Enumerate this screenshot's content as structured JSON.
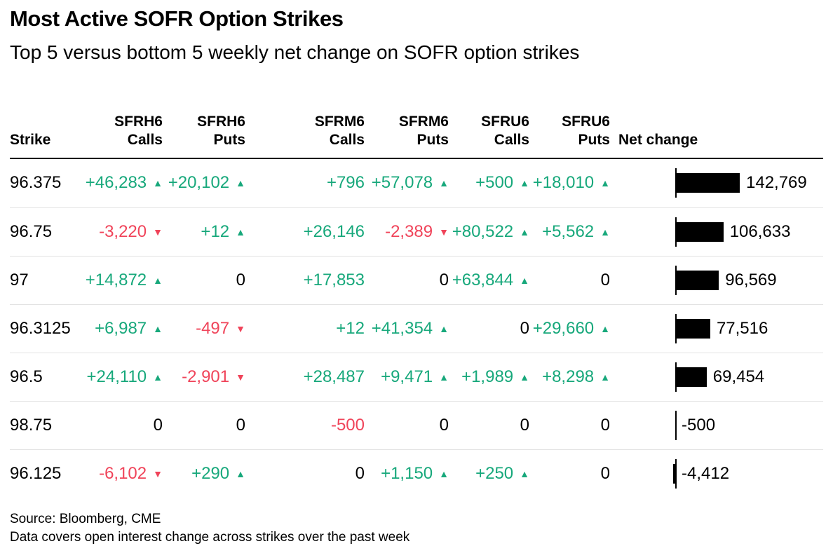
{
  "title": "Most Active SOFR Option Strikes",
  "subtitle": "Top 5 versus bottom 5 weekly net change on SOFR option strikes",
  "colors": {
    "positive": "#17A87B",
    "negative": "#F0445A",
    "bar_fill": "#000000"
  },
  "icons": {
    "up_arrow": "▲",
    "down_arrow": "▼"
  },
  "table": {
    "headers": [
      {
        "line1": "",
        "line2": "Strike"
      },
      {
        "line1": "SFRH6",
        "line2": "Calls"
      },
      {
        "line1": "SFRH6",
        "line2": "Puts"
      },
      {
        "line1": "SFRM6",
        "line2": "Calls"
      },
      {
        "line1": "SFRM6",
        "line2": "Puts"
      },
      {
        "line1": "SFRU6",
        "line2": "Calls"
      },
      {
        "line1": "SFRU6",
        "line2": "Puts"
      },
      {
        "line1": "",
        "line2": "Net change"
      }
    ],
    "rows": [
      {
        "strike": "96.375",
        "cells": [
          {
            "text": "+46,283",
            "arrow": "up",
            "tone": "positive"
          },
          {
            "text": "+20,102",
            "arrow": "up",
            "tone": "positive"
          },
          {
            "text": "+796",
            "arrow": null,
            "tone": "positive"
          },
          {
            "text": "+57,078",
            "arrow": "up",
            "tone": "positive"
          },
          {
            "text": "+500",
            "arrow": "up",
            "tone": "positive"
          },
          {
            "text": "+18,010",
            "arrow": "up",
            "tone": "positive"
          }
        ],
        "net": {
          "value": 142769,
          "label": "142,769"
        }
      },
      {
        "strike": "96.75",
        "cells": [
          {
            "text": "-3,220",
            "arrow": "down",
            "tone": "negative"
          },
          {
            "text": "+12",
            "arrow": "up",
            "tone": "positive"
          },
          {
            "text": "+26,146",
            "arrow": null,
            "tone": "positive"
          },
          {
            "text": "-2,389",
            "arrow": "down",
            "tone": "negative"
          },
          {
            "text": "+80,522",
            "arrow": "up",
            "tone": "positive"
          },
          {
            "text": "+5,562",
            "arrow": "up",
            "tone": "positive"
          }
        ],
        "net": {
          "value": 106633,
          "label": "106,633"
        }
      },
      {
        "strike": "97",
        "cells": [
          {
            "text": "+14,872",
            "arrow": "up",
            "tone": "positive"
          },
          {
            "text": "0",
            "arrow": null,
            "tone": "neutral"
          },
          {
            "text": "+17,853",
            "arrow": null,
            "tone": "positive"
          },
          {
            "text": "0",
            "arrow": null,
            "tone": "neutral"
          },
          {
            "text": "+63,844",
            "arrow": "up",
            "tone": "positive"
          },
          {
            "text": "0",
            "arrow": null,
            "tone": "neutral"
          }
        ],
        "net": {
          "value": 96569,
          "label": "96,569"
        }
      },
      {
        "strike": "96.3125",
        "cells": [
          {
            "text": "+6,987",
            "arrow": "up",
            "tone": "positive"
          },
          {
            "text": "-497",
            "arrow": "down",
            "tone": "negative"
          },
          {
            "text": "+12",
            "arrow": null,
            "tone": "positive"
          },
          {
            "text": "+41,354",
            "arrow": "up",
            "tone": "positive"
          },
          {
            "text": "0",
            "arrow": null,
            "tone": "neutral"
          },
          {
            "text": "+29,660",
            "arrow": "up",
            "tone": "positive"
          }
        ],
        "net": {
          "value": 77516,
          "label": "77,516"
        }
      },
      {
        "strike": "96.5",
        "cells": [
          {
            "text": "+24,110",
            "arrow": "up",
            "tone": "positive"
          },
          {
            "text": "-2,901",
            "arrow": "down",
            "tone": "negative"
          },
          {
            "text": "+28,487",
            "arrow": null,
            "tone": "positive"
          },
          {
            "text": "+9,471",
            "arrow": "up",
            "tone": "positive"
          },
          {
            "text": "+1,989",
            "arrow": "up",
            "tone": "positive"
          },
          {
            "text": "+8,298",
            "arrow": "up",
            "tone": "positive"
          }
        ],
        "net": {
          "value": 69454,
          "label": "69,454"
        }
      },
      {
        "strike": "98.75",
        "cells": [
          {
            "text": "0",
            "arrow": null,
            "tone": "neutral"
          },
          {
            "text": "0",
            "arrow": null,
            "tone": "neutral"
          },
          {
            "text": "-500",
            "arrow": null,
            "tone": "negative"
          },
          {
            "text": "0",
            "arrow": null,
            "tone": "neutral"
          },
          {
            "text": "0",
            "arrow": null,
            "tone": "neutral"
          },
          {
            "text": "0",
            "arrow": null,
            "tone": "neutral"
          }
        ],
        "net": {
          "value": -500,
          "label": "-500"
        }
      },
      {
        "strike": "96.125",
        "cells": [
          {
            "text": "-6,102",
            "arrow": "down",
            "tone": "negative"
          },
          {
            "text": "+290",
            "arrow": "up",
            "tone": "positive"
          },
          {
            "text": "0",
            "arrow": null,
            "tone": "neutral"
          },
          {
            "text": "+1,150",
            "arrow": "up",
            "tone": "positive"
          },
          {
            "text": "+250",
            "arrow": "up",
            "tone": "positive"
          },
          {
            "text": "0",
            "arrow": null,
            "tone": "neutral"
          }
        ],
        "net": {
          "value": -4412,
          "label": "-4,412"
        }
      }
    ]
  },
  "chart_data": {
    "type": "bar",
    "orientation": "horizontal",
    "title": "Most Active SOFR Option Strikes",
    "subtitle": "Top 5 versus bottom 5 weekly net change on SOFR option strikes",
    "categories": [
      "96.375",
      "96.75",
      "97",
      "96.3125",
      "96.5",
      "98.75",
      "96.125"
    ],
    "series": [
      {
        "name": "SFRH6 Calls",
        "values": [
          46283,
          -3220,
          14872,
          6987,
          24110,
          0,
          -6102
        ]
      },
      {
        "name": "SFRH6 Puts",
        "values": [
          20102,
          12,
          0,
          -497,
          -2901,
          0,
          290
        ]
      },
      {
        "name": "SFRM6 Calls",
        "values": [
          796,
          26146,
          17853,
          12,
          28487,
          -500,
          0
        ]
      },
      {
        "name": "SFRM6 Puts",
        "values": [
          57078,
          -2389,
          0,
          41354,
          9471,
          0,
          1150
        ]
      },
      {
        "name": "SFRU6 Calls",
        "values": [
          500,
          80522,
          63844,
          0,
          1989,
          0,
          250
        ]
      },
      {
        "name": "SFRU6 Puts",
        "values": [
          18010,
          5562,
          0,
          29660,
          8298,
          0,
          0
        ]
      }
    ],
    "net_change": {
      "name": "Net change",
      "values": [
        142769,
        106633,
        96569,
        77516,
        69454,
        -500,
        -4412
      ]
    },
    "bar_color": "#000000",
    "value_labels": [
      "142,769",
      "106,633",
      "96,569",
      "77,516",
      "69,454",
      "-500",
      "-4,412"
    ],
    "xlim": [
      0,
      142769
    ],
    "grid": false,
    "legend_position": "none"
  },
  "footer": {
    "source": "Source: Bloomberg, CME",
    "note": "Data covers open interest change across strikes over the past week"
  }
}
